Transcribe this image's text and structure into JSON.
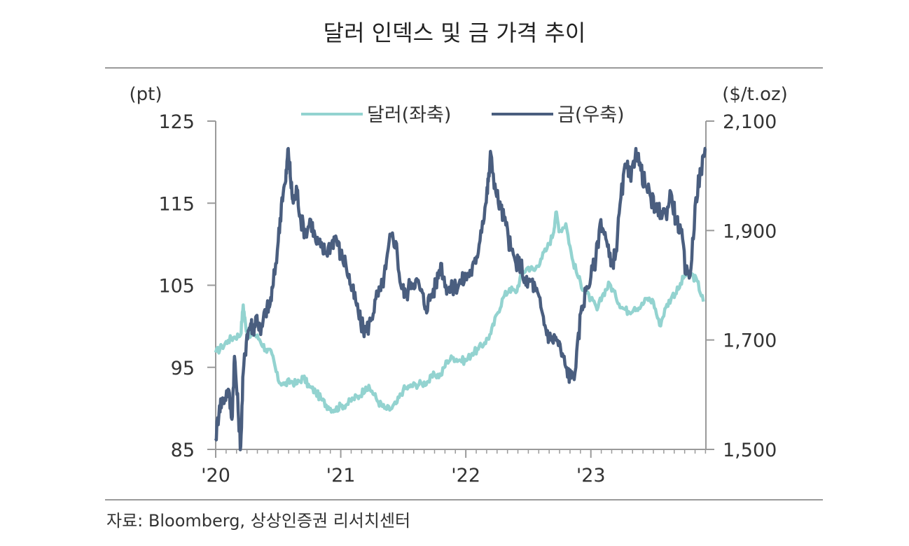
{
  "chart_data": {
    "type": "line",
    "title": "달러 인덱스 및 금 가격 추이",
    "source": "자료: Bloomberg, 상상인증권 리서치센터",
    "left_unit": "(pt)",
    "right_unit": "($/t.oz)",
    "left_ylim": [
      85,
      125
    ],
    "right_ylim": [
      1500,
      2100
    ],
    "left_ticks": [
      "125",
      "115",
      "105",
      "95",
      "85"
    ],
    "right_ticks": [
      "2,100",
      "1,900",
      "1,700",
      "1,500"
    ],
    "x_ticks": [
      "'20",
      "'21",
      "'22",
      "'23"
    ],
    "x_range": [
      2020.0,
      2023.92
    ],
    "series": [
      {
        "name": "달러(좌축)",
        "axis": "left",
        "color": "#93d3d0",
        "x": [
          2020.0,
          2020.05,
          2020.1,
          2020.15,
          2020.2,
          2020.22,
          2020.24,
          2020.27,
          2020.3,
          2020.35,
          2020.4,
          2020.45,
          2020.5,
          2020.55,
          2020.6,
          2020.65,
          2020.7,
          2020.75,
          2020.8,
          2020.85,
          2020.9,
          2020.95,
          2021.0,
          2021.05,
          2021.1,
          2021.15,
          2021.2,
          2021.25,
          2021.3,
          2021.35,
          2021.4,
          2021.45,
          2021.5,
          2021.55,
          2021.6,
          2021.65,
          2021.7,
          2021.75,
          2021.8,
          2021.85,
          2021.9,
          2021.95,
          2022.0,
          2022.05,
          2022.1,
          2022.15,
          2022.2,
          2022.25,
          2022.3,
          2022.35,
          2022.4,
          2022.45,
          2022.5,
          2022.55,
          2022.6,
          2022.65,
          2022.7,
          2022.72,
          2022.75,
          2022.8,
          2022.85,
          2022.9,
          2022.95,
          2023.0,
          2023.05,
          2023.1,
          2023.15,
          2023.2,
          2023.25,
          2023.3,
          2023.35,
          2023.4,
          2023.45,
          2023.5,
          2023.55,
          2023.6,
          2023.65,
          2023.7,
          2023.75,
          2023.8,
          2023.85,
          2023.9
        ],
        "values": [
          96.8,
          97.5,
          98.3,
          98.7,
          99.0,
          102.6,
          100.0,
          98.7,
          99.2,
          98.4,
          97.2,
          96.6,
          93.4,
          92.9,
          93.3,
          93.0,
          93.8,
          92.6,
          92.0,
          91.0,
          90.2,
          89.8,
          90.3,
          90.5,
          91.2,
          91.5,
          92.6,
          92.1,
          90.8,
          90.0,
          89.9,
          90.7,
          92.3,
          92.6,
          92.9,
          93.0,
          93.3,
          94.1,
          94.0,
          95.8,
          96.2,
          95.9,
          95.8,
          96.7,
          97.2,
          98.0,
          99.1,
          101.5,
          103.5,
          104.6,
          104.1,
          106.5,
          107.2,
          106.8,
          108.2,
          109.5,
          111.3,
          113.9,
          111.6,
          112.5,
          108.3,
          105.9,
          104.3,
          103.3,
          102.0,
          104.0,
          105.2,
          103.6,
          102.3,
          101.8,
          102.3,
          102.4,
          103.4,
          103.0,
          100.1,
          102.3,
          103.7,
          104.5,
          106.2,
          106.4,
          105.5,
          103.0
        ]
      },
      {
        "name": "금(우축)",
        "axis": "right",
        "color": "#4a5e7f",
        "x": [
          2020.0,
          2020.03,
          2020.06,
          2020.1,
          2020.13,
          2020.15,
          2020.18,
          2020.2,
          2020.22,
          2020.25,
          2020.28,
          2020.3,
          2020.33,
          2020.36,
          2020.4,
          2020.43,
          2020.46,
          2020.5,
          2020.53,
          2020.56,
          2020.58,
          2020.6,
          2020.62,
          2020.65,
          2020.68,
          2020.72,
          2020.76,
          2020.8,
          2020.84,
          2020.88,
          2020.92,
          2020.96,
          2021.0,
          2021.04,
          2021.08,
          2021.12,
          2021.16,
          2021.2,
          2021.24,
          2021.28,
          2021.32,
          2021.36,
          2021.4,
          2021.44,
          2021.48,
          2021.52,
          2021.56,
          2021.6,
          2021.64,
          2021.68,
          2021.72,
          2021.76,
          2021.8,
          2021.84,
          2021.88,
          2021.92,
          2021.96,
          2022.0,
          2022.04,
          2022.08,
          2022.12,
          2022.16,
          2022.18,
          2022.2,
          2022.24,
          2022.28,
          2022.32,
          2022.36,
          2022.4,
          2022.44,
          2022.48,
          2022.52,
          2022.56,
          2022.6,
          2022.64,
          2022.68,
          2022.72,
          2022.76,
          2022.8,
          2022.84,
          2022.88,
          2022.92,
          2022.96,
          2023.0,
          2023.04,
          2023.08,
          2023.12,
          2023.16,
          2023.2,
          2023.24,
          2023.28,
          2023.32,
          2023.36,
          2023.4,
          2023.44,
          2023.48,
          2023.52,
          2023.56,
          2023.6,
          2023.64,
          2023.68,
          2023.72,
          2023.76,
          2023.8,
          2023.84,
          2023.88,
          2023.92
        ],
        "values": [
          1520,
          1580,
          1590,
          1610,
          1555,
          1670,
          1570,
          1505,
          1640,
          1710,
          1730,
          1720,
          1745,
          1710,
          1755,
          1760,
          1800,
          1880,
          1960,
          1990,
          2050,
          1990,
          1950,
          1975,
          1920,
          1895,
          1920,
          1880,
          1870,
          1860,
          1875,
          1890,
          1855,
          1840,
          1800,
          1770,
          1730,
          1715,
          1735,
          1775,
          1790,
          1830,
          1890,
          1880,
          1800,
          1780,
          1805,
          1810,
          1790,
          1760,
          1780,
          1800,
          1840,
          1800,
          1790,
          1800,
          1805,
          1815,
          1825,
          1840,
          1900,
          1950,
          1990,
          2040,
          1970,
          1940,
          1910,
          1865,
          1840,
          1840,
          1800,
          1810,
          1790,
          1760,
          1720,
          1700,
          1705,
          1680,
          1650,
          1630,
          1650,
          1750,
          1790,
          1815,
          1850,
          1920,
          1885,
          1835,
          1860,
          1960,
          2020,
          1990,
          2050,
          2010,
          1980,
          1960,
          1935,
          1935,
          1930,
          1970,
          1920,
          1900,
          1820,
          1830,
          1960,
          2010,
          2050
        ]
      }
    ]
  }
}
